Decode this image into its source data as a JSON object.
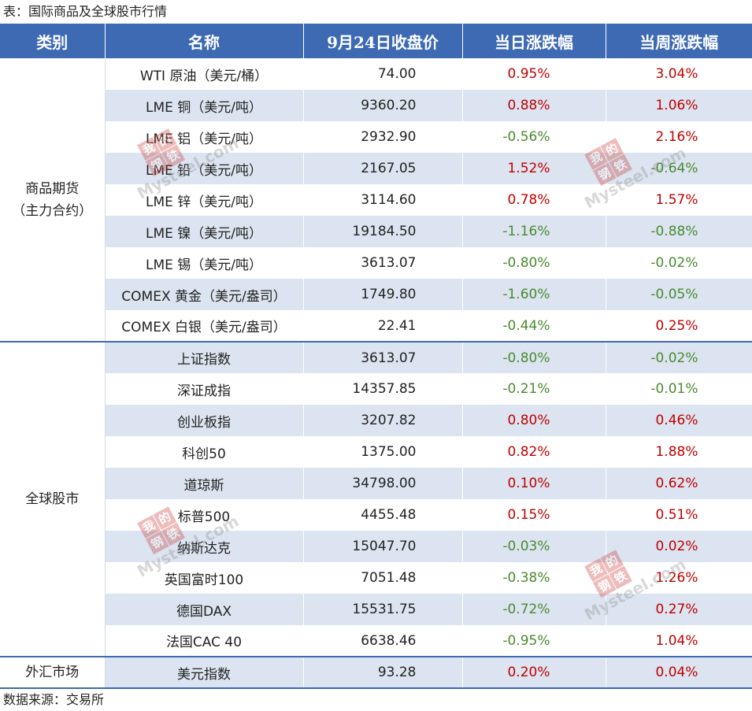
{
  "caption": "表：国际商品及全球股市行情",
  "source": "数据来源：交易所",
  "colors": {
    "header_bg": "#3d6ab3",
    "row_shade": "#dbe4f0",
    "up": "#c00000",
    "down": "#4a8a2e"
  },
  "columns": [
    "类别",
    "名称",
    "9月24日收盘价",
    "当日涨跌幅",
    "当周涨跌幅"
  ],
  "groups": [
    {
      "category": "商品期货\n（主力合约）",
      "category_lines": [
        "商品期货",
        "（主力合约）"
      ],
      "rows": [
        {
          "name": "WTI 原油（美元/桶）",
          "price": "74.00",
          "day": "0.95%",
          "week": "3.04%"
        },
        {
          "name": "LME 铜（美元/吨）",
          "price": "9360.20",
          "day": "0.88%",
          "week": "1.06%"
        },
        {
          "name": "LME 铝（美元/吨）",
          "price": "2932.90",
          "day": "-0.56%",
          "week": "2.16%"
        },
        {
          "name": "LME 铅（美元/吨）",
          "price": "2167.05",
          "day": "1.52%",
          "week": "-0.64%"
        },
        {
          "name": "LME 锌（美元/吨）",
          "price": "3114.60",
          "day": "0.78%",
          "week": "1.57%"
        },
        {
          "name": "LME 镍（美元/吨）",
          "price": "19184.50",
          "day": "-1.16%",
          "week": "-0.88%"
        },
        {
          "name": "LME 锡（美元/吨）",
          "price": "3613.07",
          "day": "-0.80%",
          "week": "-0.02%"
        },
        {
          "name": "COMEX 黄金（美元/盎司）",
          "price": "1749.80",
          "day": "-1.60%",
          "week": "-0.05%"
        },
        {
          "name": "COMEX 白银（美元/盎司）",
          "price": "22.41",
          "day": "-0.44%",
          "week": "0.25%"
        }
      ]
    },
    {
      "category_lines": [
        "全球股市"
      ],
      "rows": [
        {
          "name": "上证指数",
          "price": "3613.07",
          "day": "-0.80%",
          "week": "-0.02%"
        },
        {
          "name": "深证成指",
          "price": "14357.85",
          "day": "-0.21%",
          "week": "-0.01%"
        },
        {
          "name": "创业板指",
          "price": "3207.82",
          "day": "0.80%",
          "week": "0.46%"
        },
        {
          "name": "科创50",
          "price": "1375.00",
          "day": "0.82%",
          "week": "1.88%"
        },
        {
          "name": "道琼斯",
          "price": "34798.00",
          "day": "0.10%",
          "week": "0.62%"
        },
        {
          "name": "标普500",
          "price": "4455.48",
          "day": "0.15%",
          "week": "0.51%"
        },
        {
          "name": "纳斯达克",
          "price": "15047.70",
          "day": "-0.03%",
          "week": "0.02%"
        },
        {
          "name": "英国富时100",
          "price": "7051.48",
          "day": "-0.38%",
          "week": "1.26%"
        },
        {
          "name": "德国DAX",
          "price": "15531.75",
          "day": "-0.72%",
          "week": "0.27%"
        },
        {
          "name": "法国CAC 40",
          "price": "6638.46",
          "day": "-0.95%",
          "week": "1.04%"
        }
      ]
    },
    {
      "category_lines": [
        "外汇市场"
      ],
      "rows": [
        {
          "name": "美元指数",
          "price": "93.28",
          "day": "0.20%",
          "week": "0.04%"
        }
      ]
    }
  ],
  "watermark": {
    "chars": [
      "我",
      "的",
      "钢",
      "铁"
    ],
    "brand": "Mysteel.com"
  }
}
